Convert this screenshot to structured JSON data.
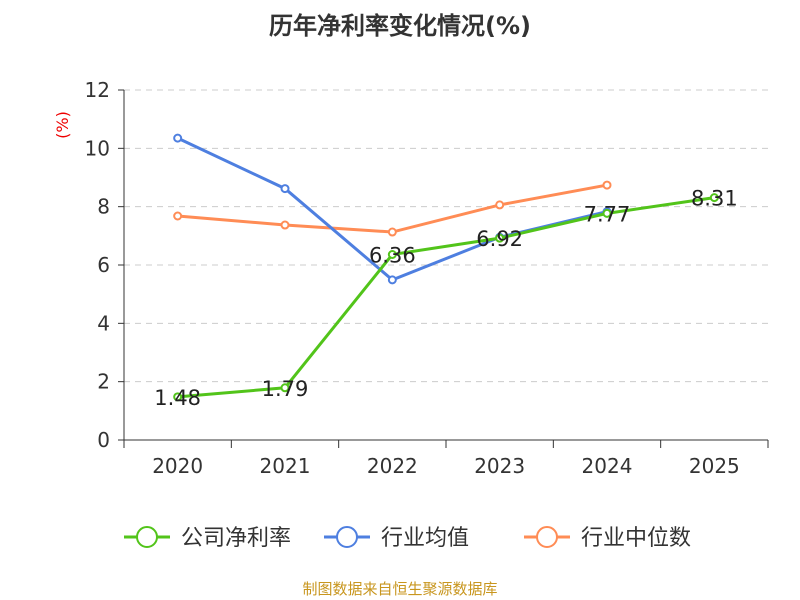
{
  "chart_data": {
    "type": "line",
    "title": "历年净利率变化情况(%)",
    "ylabel": "(%)",
    "categories": [
      "2020",
      "2021",
      "2022",
      "2023",
      "2024",
      "2025"
    ],
    "ylim": [
      0,
      12
    ],
    "yticks": [
      0,
      2,
      4,
      6,
      8,
      10,
      12
    ],
    "grid": true,
    "legend_position": "bottom",
    "series": [
      {
        "name": "公司净利率",
        "color": "#52c41a",
        "values": [
          1.48,
          1.79,
          6.36,
          6.92,
          7.77,
          8.31
        ],
        "labels": [
          "1.48",
          "1.79",
          "6.36",
          "6.92",
          "7.77",
          "8.31"
        ]
      },
      {
        "name": "行业均值",
        "color": "#4e7fe0",
        "values": [
          10.35,
          8.62,
          5.49,
          6.95,
          7.83,
          null
        ]
      },
      {
        "name": "行业中位数",
        "color": "#ff8c55",
        "values": [
          7.68,
          7.37,
          7.13,
          8.06,
          8.74,
          null
        ]
      }
    ]
  },
  "source": "制图数据来自恒生聚源数据库"
}
